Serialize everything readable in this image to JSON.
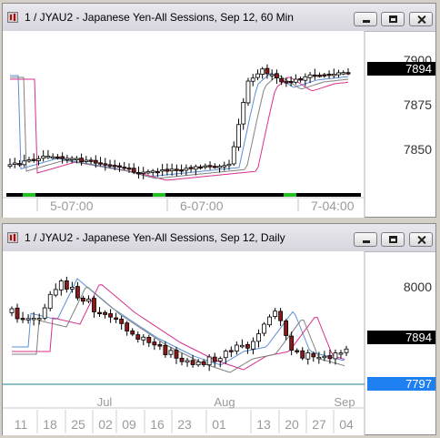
{
  "window1": {
    "title": "1 / JYAU2 - Japanese Yen-All Sessions, Sep 12, 60 Min",
    "price_labels": [
      "7900",
      "7875",
      "7850"
    ],
    "last_price": "7894",
    "time_labels": [
      "5-07:00",
      "6-07:00",
      "7-04:00"
    ]
  },
  "window2": {
    "title": "1 / JYAU2 - Japanese Yen-All Sessions, Sep 12, Daily",
    "price_labels": [
      "8000"
    ],
    "last_price": "7894",
    "line_price": "7797",
    "month_labels": [
      "Jul",
      "Aug",
      "Sep"
    ],
    "day_labels": [
      "11",
      "18",
      "25",
      "02",
      "09",
      "16",
      "23",
      "01",
      "13",
      "20",
      "27",
      "04"
    ]
  },
  "colors": {
    "up_candle": "#ffffff",
    "down_candle": "#8b1a1a",
    "wick": "#000000",
    "ma_fast": "#5b8fd6",
    "ma_slow": "#d8308c",
    "ma_mid": "#808080",
    "horizontal_line": "#1a7f8f",
    "last_price_box": "#000000",
    "line_price_box": "#1e7ff0",
    "session_marker": "#22c022"
  },
  "icons": [
    "chart-app-icon",
    "minimize-icon",
    "maximize-icon",
    "close-icon"
  ]
}
